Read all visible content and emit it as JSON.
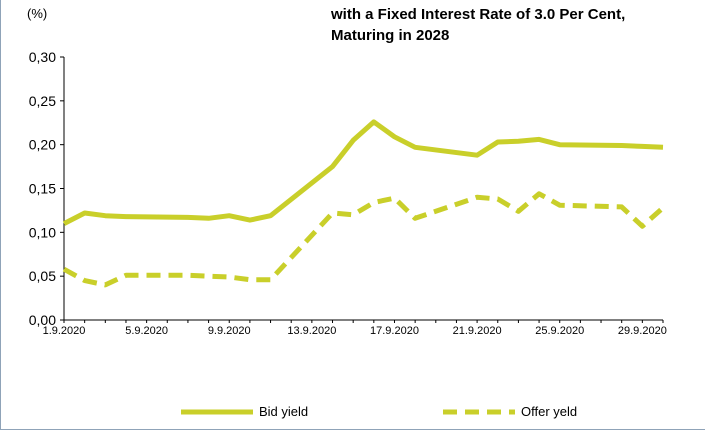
{
  "chart_data": {
    "type": "line",
    "title": "with a Fixed Interest Rate of 3.0 Per Cent,\nMaturing in 2028",
    "ylabel": "(%)",
    "xlabel": "",
    "ylim": [
      0,
      0.3
    ],
    "y_ticks": [
      "0,00",
      "0,05",
      "0,10",
      "0,15",
      "0,20",
      "0,25",
      "0,30"
    ],
    "x_ticks": [
      "1.9.2020",
      "5.9.2020",
      "9.9.2020",
      "13.9.2020",
      "17.9.2020",
      "21.9.2020",
      "25.9.2020",
      "29.9.2020"
    ],
    "x_start_day": 1,
    "x_end_day": 30,
    "legend_position": "bottom",
    "grid": false,
    "series": [
      {
        "name": "Bid yield",
        "style": "solid",
        "color": "#c9cf2a",
        "days": [
          1,
          2,
          3,
          4,
          7,
          8,
          9,
          10,
          11,
          14,
          15,
          16,
          17,
          18,
          21,
          22,
          23,
          24,
          25,
          28,
          29,
          30
        ],
        "values": [
          0.11,
          0.122,
          0.119,
          0.118,
          0.117,
          0.116,
          0.119,
          0.114,
          0.119,
          0.175,
          0.205,
          0.226,
          0.209,
          0.197,
          0.188,
          0.203,
          0.204,
          0.206,
          0.2,
          0.199,
          0.198,
          0.197
        ]
      },
      {
        "name": "Offer yeld",
        "style": "dashed",
        "color": "#c9cf2a",
        "days": [
          1,
          2,
          3,
          4,
          7,
          8,
          9,
          10,
          11,
          14,
          15,
          16,
          17,
          18,
          21,
          22,
          23,
          24,
          25,
          28,
          29,
          30
        ],
        "values": [
          0.058,
          0.045,
          0.04,
          0.051,
          0.051,
          0.05,
          0.049,
          0.046,
          0.046,
          0.122,
          0.12,
          0.134,
          0.139,
          0.116,
          0.14,
          0.138,
          0.124,
          0.144,
          0.131,
          0.129,
          0.107,
          0.128
        ]
      }
    ]
  }
}
